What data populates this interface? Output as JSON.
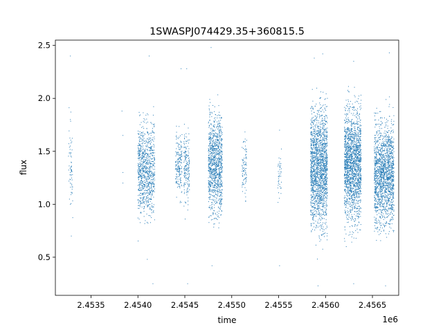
{
  "chart_data": {
    "type": "scatter",
    "title": "1SWASPJ074429.35+360815.5",
    "xlabel": "time",
    "ylabel": "flux",
    "x_offset_label": "1e6",
    "x_scale": 1000000,
    "xlim": [
      2.45312,
      2.45678
    ],
    "ylim": [
      0.14,
      2.55
    ],
    "xticks": [
      2.4535,
      2.454,
      2.4545,
      2.455,
      2.4555,
      2.456,
      2.4565
    ],
    "xtick_labels": [
      "2.4535",
      "2.4540",
      "2.4545",
      "2.4550",
      "2.4555",
      "2.4560",
      "2.4565"
    ],
    "yticks": [
      0.5,
      1.0,
      1.5,
      2.0,
      2.5
    ],
    "ytick_labels": [
      "0.5",
      "1.0",
      "1.5",
      "2.0",
      "2.5"
    ],
    "grid": false,
    "marker_color": "#1f77b4",
    "series": [
      {
        "values": [
          {
            "x": 2.45328,
            "y": 2.4
          },
          {
            "x": 2.45328,
            "y": 1.8
          },
          {
            "x": 2.45328,
            "y": 1.55
          },
          {
            "x": 2.45328,
            "y": 1.3
          },
          {
            "x": 2.45328,
            "y": 1.0
          },
          {
            "x": 2.45329,
            "y": 0.7
          },
          {
            "x": 2.45383,
            "y": 1.88
          },
          {
            "x": 2.45384,
            "y": 1.65
          },
          {
            "x": 2.45384,
            "y": 1.3
          },
          {
            "x": 2.45384,
            "y": 1.2
          },
          {
            "x": 2.45412,
            "y": 2.4
          },
          {
            "x": 2.4541,
            "y": 0.48
          },
          {
            "x": 2.45416,
            "y": 0.25
          },
          {
            "x": 2.45446,
            "y": 2.28
          },
          {
            "x": 2.45452,
            "y": 2.28
          },
          {
            "x": 2.45453,
            "y": 0.25
          },
          {
            "x": 2.45478,
            "y": 2.48
          },
          {
            "x": 2.45479,
            "y": 0.42
          },
          {
            "x": 2.45551,
            "y": 1.7
          },
          {
            "x": 2.45551,
            "y": 1.4
          },
          {
            "x": 2.45551,
            "y": 0.42
          },
          {
            "x": 2.45588,
            "y": 2.38
          },
          {
            "x": 2.45597,
            "y": 2.42
          },
          {
            "x": 2.45592,
            "y": 0.23
          },
          {
            "x": 2.4563,
            "y": 2.35
          },
          {
            "x": 2.4563,
            "y": 0.25
          },
          {
            "x": 2.45668,
            "y": 2.43
          },
          {
            "x": 2.45664,
            "y": 0.23
          }
        ]
      }
    ],
    "clusters": [
      {
        "x_start": 2.45326,
        "x_end": 2.45331,
        "y_center": 1.35,
        "y_spread": 0.45,
        "count": 60
      },
      {
        "x_start": 2.454,
        "x_end": 2.45418,
        "y_center": 1.32,
        "y_spread": 0.52,
        "count": 900
      },
      {
        "x_start": 2.4544,
        "x_end": 2.45447,
        "y_center": 1.38,
        "y_spread": 0.35,
        "count": 180
      },
      {
        "x_start": 2.45449,
        "x_end": 2.45455,
        "y_center": 1.33,
        "y_spread": 0.38,
        "count": 180
      },
      {
        "x_start": 2.45475,
        "x_end": 2.4549,
        "y_center": 1.37,
        "y_spread": 0.55,
        "count": 1100
      },
      {
        "x_start": 2.45511,
        "x_end": 2.45516,
        "y_center": 1.35,
        "y_spread": 0.3,
        "count": 90
      },
      {
        "x_start": 2.45549,
        "x_end": 2.45553,
        "y_center": 1.3,
        "y_spread": 0.3,
        "count": 40
      },
      {
        "x_start": 2.45584,
        "x_end": 2.45602,
        "y_center": 1.35,
        "y_spread": 0.65,
        "count": 1800
      },
      {
        "x_start": 2.4562,
        "x_end": 2.45638,
        "y_center": 1.38,
        "y_spread": 0.6,
        "count": 1800
      },
      {
        "x_start": 2.45652,
        "x_end": 2.45673,
        "y_center": 1.28,
        "y_spread": 0.55,
        "count": 1700
      }
    ]
  }
}
